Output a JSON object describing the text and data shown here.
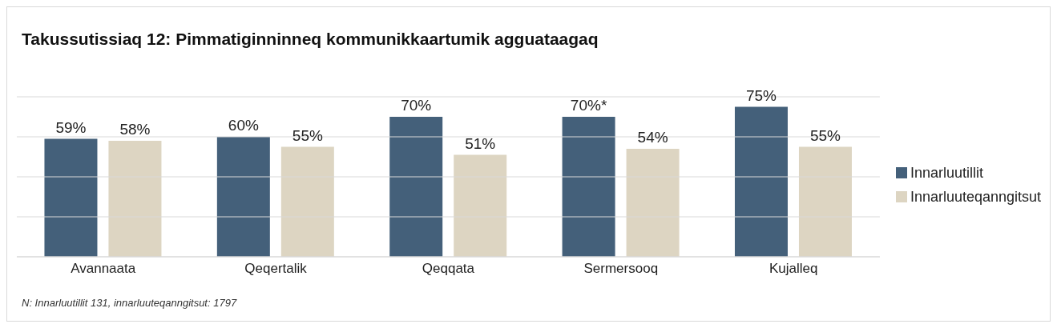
{
  "chart_data": {
    "type": "bar",
    "title": "Takussutissiaq 12: Pimmatiginninneq kommunikkaartumik agguataagaq",
    "categories": [
      "Avannaata",
      "Qeqertalik",
      "Qeqqata",
      "Sermersooq",
      "Kujalleq"
    ],
    "series": [
      {
        "name": "Innarluutillit",
        "color": "#44607a",
        "values": [
          59,
          60,
          70,
          70,
          75
        ],
        "value_labels": [
          "59%",
          "60%",
          "70%",
          "70%*",
          "75%"
        ]
      },
      {
        "name": "Innarluuteqanngitsut",
        "color": "#ddd5c2",
        "values": [
          58,
          55,
          51,
          54,
          55
        ],
        "value_labels": [
          "58%",
          "55%",
          "51%",
          "54%",
          "55%"
        ]
      }
    ],
    "ylim": [
      0,
      80
    ],
    "yticks": [
      {
        "value": 0,
        "label": null
      },
      {
        "value": 20,
        "label": null
      },
      {
        "value": 40,
        "label": null
      },
      {
        "value": 60,
        "label": null
      },
      {
        "value": 80,
        "label": null
      }
    ],
    "tick_labels": "x",
    "grid": "y",
    "legend": "right",
    "annotations": [
      "N: Innarluutillit 131, innarluuteqanngitsut: 1797"
    ]
  }
}
